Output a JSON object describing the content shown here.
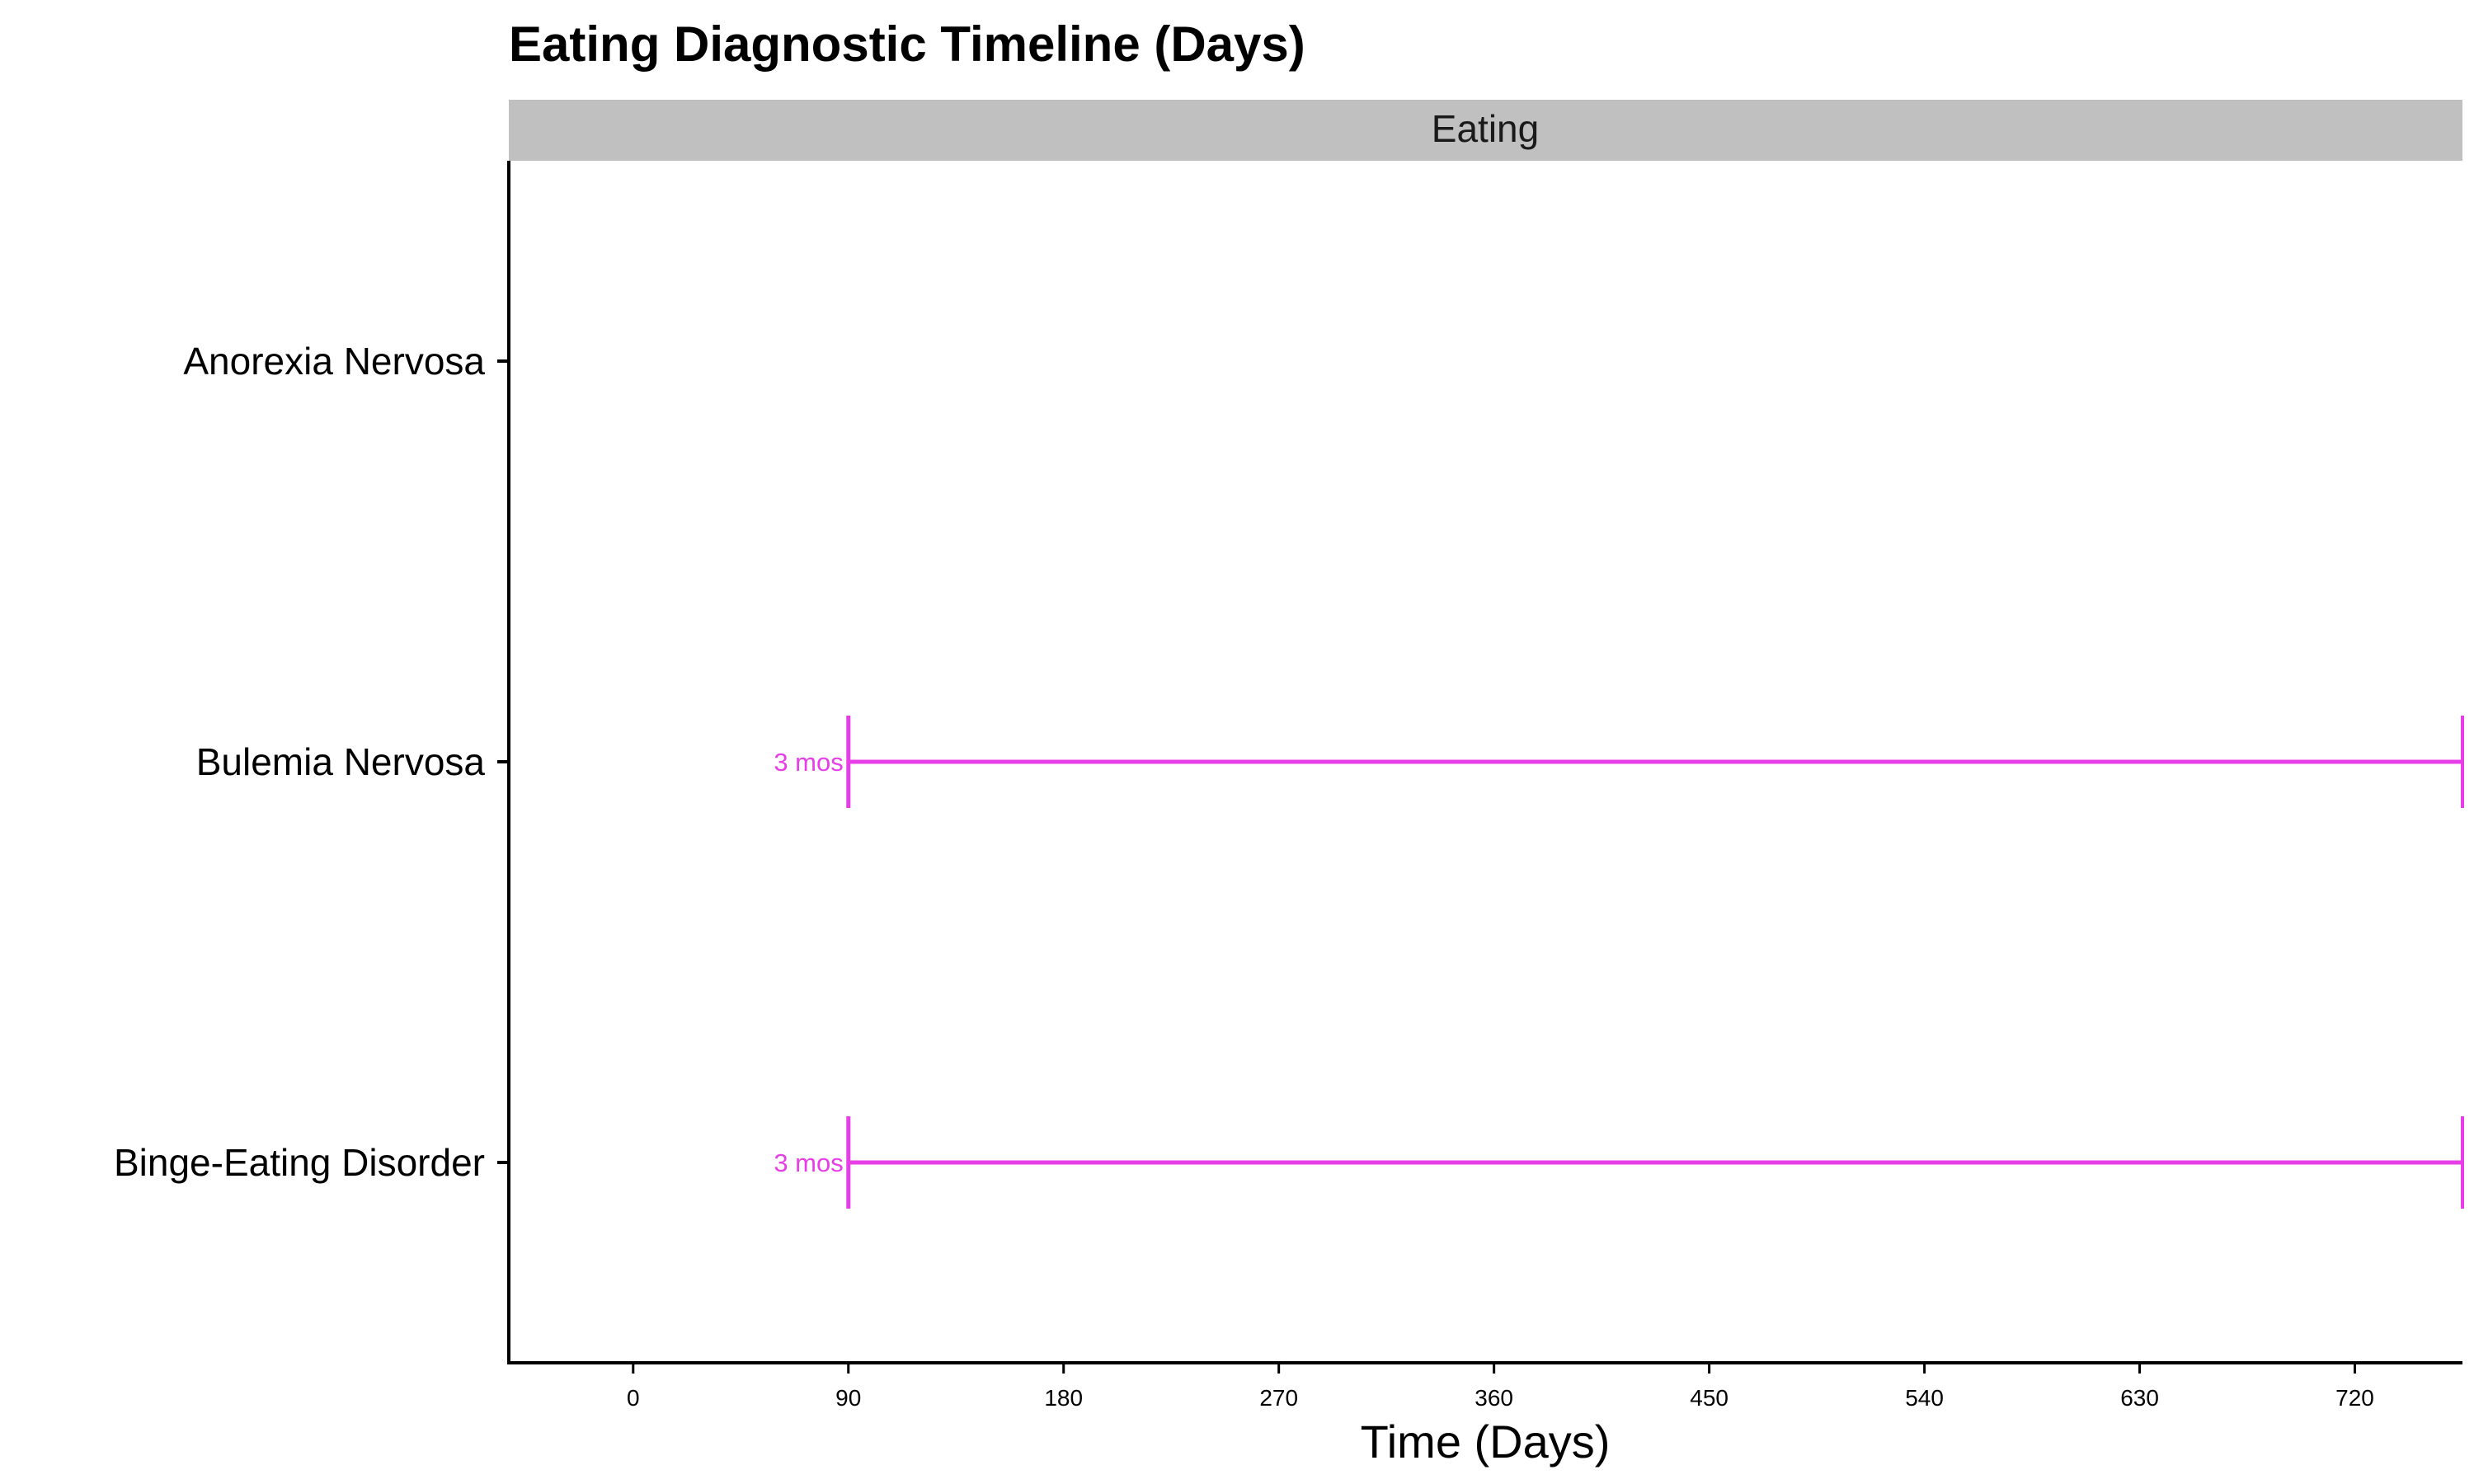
{
  "chart_data": {
    "type": "timeline",
    "title": "Eating Diagnostic Timeline (Days)",
    "facet": "Eating",
    "xlabel": "Time (Days)",
    "ylabel": "",
    "xlim": [
      -52,
      765
    ],
    "xticks": [
      0,
      90,
      180,
      270,
      360,
      450,
      540,
      630,
      720
    ],
    "categories": [
      "Anorexia Nervosa",
      "Bulemia Nervosa",
      "Binge-Eating Disorder"
    ],
    "segments": [
      {
        "category": "Bulemia Nervosa",
        "start": 90,
        "end": 765,
        "label": "3 mos",
        "color": "#e83ee8"
      },
      {
        "category": "Binge-Eating Disorder",
        "start": 90,
        "end": 765,
        "label": "3 mos",
        "color": "#e83ee8"
      }
    ],
    "strip_color": "#c0c0c0",
    "grid": false
  }
}
